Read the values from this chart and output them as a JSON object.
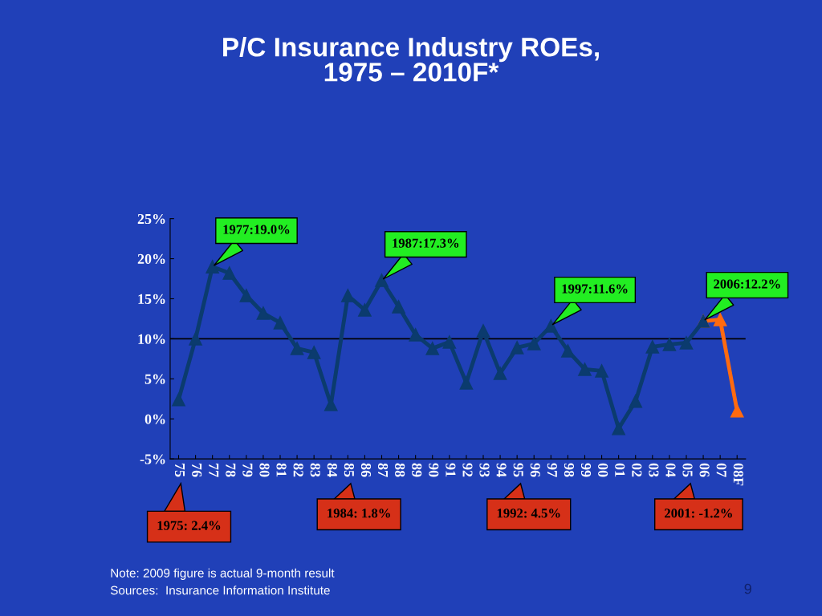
{
  "chart_data": {
    "type": "line",
    "title": "P/C Insurance Industry ROEs,\n1975 – 2010F*",
    "categories": [
      "75",
      "76",
      "77",
      "78",
      "79",
      "80",
      "81",
      "82",
      "83",
      "84",
      "85",
      "86",
      "87",
      "88",
      "89",
      "90",
      "91",
      "92",
      "93",
      "94",
      "95",
      "96",
      "97",
      "98",
      "99",
      "00",
      "01",
      "02",
      "03",
      "04",
      "05",
      "06",
      "07",
      "08F"
    ],
    "series": [
      {
        "color": "#0b3b6e",
        "values": [
          2.4,
          10.0,
          19.0,
          18.2,
          15.4,
          13.2,
          12.0,
          8.8,
          8.3,
          1.8,
          15.4,
          13.6,
          17.3,
          14.0,
          10.5,
          8.8,
          9.6,
          4.5,
          11.0,
          5.7,
          8.9,
          9.4,
          11.6,
          8.5,
          6.2,
          6.0,
          -1.2,
          2.2,
          9.0,
          9.3,
          9.5,
          12.2,
          null,
          null
        ]
      },
      {
        "color": "#ff6a10",
        "values": [
          null,
          null,
          null,
          null,
          null,
          null,
          null,
          null,
          null,
          null,
          null,
          null,
          null,
          null,
          null,
          null,
          null,
          null,
          null,
          null,
          null,
          null,
          null,
          null,
          null,
          null,
          null,
          null,
          null,
          null,
          null,
          12.2,
          12.4,
          1.0
        ]
      }
    ],
    "ylim": [
      -5,
      25
    ],
    "yticks": [
      {
        "value": -5,
        "label": "-5%"
      },
      {
        "value": 0,
        "label": "0%"
      },
      {
        "value": 5,
        "label": "5%"
      },
      {
        "value": 10,
        "label": "10%"
      },
      {
        "value": 15,
        "label": "15%"
      },
      {
        "value": 20,
        "label": "20%"
      },
      {
        "value": 25,
        "label": "25%"
      }
    ],
    "ref_lines": [
      {
        "axis": "y",
        "value": 10,
        "color": "#000000"
      }
    ],
    "marker": "triangle",
    "grid": false,
    "legend": false,
    "annotations": [
      {
        "text": "1977:19.0%",
        "x": "77",
        "y": 19.0
      },
      {
        "text": "1987:17.3%",
        "x": "87",
        "y": 17.3
      },
      {
        "text": "1997:11.6%",
        "x": "97",
        "y": 11.6
      },
      {
        "text": "2006:12.2%",
        "x": "06",
        "y": 12.2
      },
      "1975: 2.4%",
      "1984: 1.8%",
      "1992: 4.5%",
      "2001: -1.2%",
      "Note: 2009 figure is actual 9-month result",
      "Sources:  Insurance Information Institute",
      "9"
    ]
  }
}
